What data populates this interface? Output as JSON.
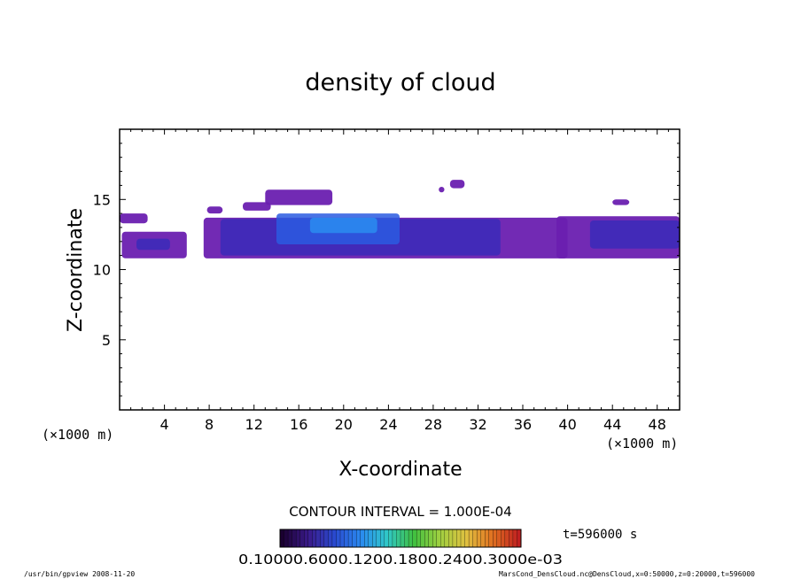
{
  "chart_data": {
    "type": "heatmap",
    "title": "density of cloud",
    "xlabel": "X-coordinate",
    "ylabel": "Z-coordinate",
    "x_unit_left": "(×1000 m)",
    "x_unit_right": "(×1000 m)",
    "xlim": [
      0,
      50
    ],
    "ylim": [
      0,
      20
    ],
    "x_ticks": [
      4,
      8,
      12,
      16,
      20,
      24,
      28,
      32,
      36,
      40,
      44,
      48
    ],
    "y_ticks": [
      5,
      10,
      15
    ],
    "x_tick_labels": [
      "4",
      "8",
      "12",
      "16",
      "20",
      "24",
      "28",
      "32",
      "36",
      "40",
      "44",
      "48"
    ],
    "y_tick_labels": [
      "5",
      "10",
      "15"
    ],
    "contour_interval_label": "CONTOUR INTERVAL = 1.000E-04",
    "time_label": "t=596000 s",
    "colorbar_label_text": "0.10000.6000.1200.1800.2400.3000e-03",
    "color_scale": [
      "#1a0030",
      "#3a1a8a",
      "#2a4ad0",
      "#2a8af0",
      "#30c8c8",
      "#40c040",
      "#a0d040",
      "#e0c040",
      "#e07020",
      "#c02020"
    ],
    "cloud_layers": [
      {
        "x": [
          0.0,
          2.5
        ],
        "z": [
          13.3,
          14.0
        ],
        "level": 1
      },
      {
        "x": [
          0.2,
          6.0
        ],
        "z": [
          10.8,
          12.7
        ],
        "level": 1
      },
      {
        "x": [
          1.5,
          4.5
        ],
        "z": [
          11.4,
          12.2
        ],
        "level": 2
      },
      {
        "x": [
          7.5,
          40.0
        ],
        "z": [
          10.8,
          13.7
        ],
        "level": 1
      },
      {
        "x": [
          9.0,
          34.0
        ],
        "z": [
          11.0,
          13.6
        ],
        "level": 2
      },
      {
        "x": [
          14.0,
          25.0
        ],
        "z": [
          11.8,
          14.0
        ],
        "level": 3
      },
      {
        "x": [
          17.0,
          23.0
        ],
        "z": [
          12.6,
          13.7
        ],
        "level": 4
      },
      {
        "x": [
          13.0,
          19.0
        ],
        "z": [
          14.6,
          15.7
        ],
        "level": 1
      },
      {
        "x": [
          11.0,
          13.5
        ],
        "z": [
          14.2,
          14.8
        ],
        "level": 1
      },
      {
        "x": [
          7.8,
          9.2
        ],
        "z": [
          14.0,
          14.5
        ],
        "level": 1
      },
      {
        "x": [
          29.5,
          30.8
        ],
        "z": [
          15.8,
          16.4
        ],
        "level": 1
      },
      {
        "x": [
          28.5,
          29.0
        ],
        "z": [
          15.5,
          15.9
        ],
        "level": 1
      },
      {
        "x": [
          39.0,
          50.0
        ],
        "z": [
          10.8,
          13.8
        ],
        "level": 1
      },
      {
        "x": [
          42.0,
          50.0
        ],
        "z": [
          11.5,
          13.5
        ],
        "level": 2
      },
      {
        "x": [
          44.0,
          45.5
        ],
        "z": [
          14.6,
          15.0
        ],
        "level": 1
      }
    ]
  },
  "footer": {
    "left": "/usr/bin/gpview  2008-11-20",
    "right": "MarsCond_DensCloud.nc@DensCloud,x=0:50000,z=0:20000,t=596000"
  }
}
